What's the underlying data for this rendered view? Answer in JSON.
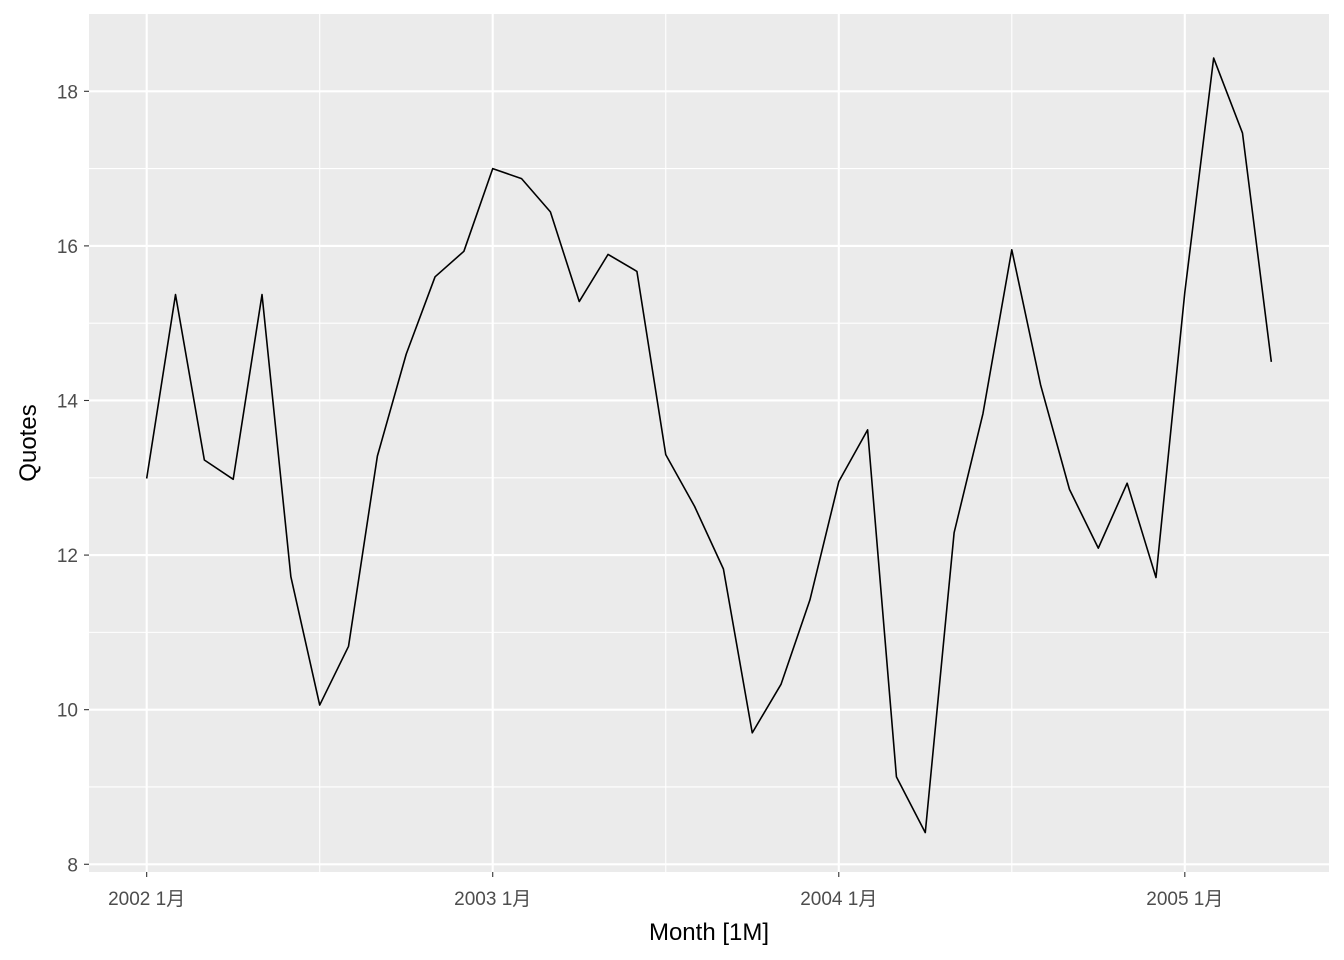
{
  "chart_data": {
    "type": "line",
    "xlabel": "Month [1M]",
    "ylabel": "Quotes",
    "x_tick_labels": [
      "2002 1月",
      "2003 1月",
      "2004 1月",
      "2005 1月"
    ],
    "y_tick_labels": [
      "8",
      "10",
      "12",
      "14",
      "16",
      "18"
    ],
    "x_ticks": [
      "2002-01",
      "2003-01",
      "2004-01",
      "2005-01"
    ],
    "y_ticks": [
      8,
      10,
      12,
      14,
      16,
      18
    ],
    "xlim": [
      "2001-11",
      "2005-06"
    ],
    "ylim": [
      7.9,
      19.0
    ],
    "grid": true,
    "legend": "none",
    "colors": {
      "panel": "#ebebeb",
      "grid": "#ffffff",
      "line": "#000000",
      "tick": "#333333"
    },
    "series": [
      {
        "x": [
          "2002-01",
          "2002-02",
          "2002-03",
          "2002-04",
          "2002-05",
          "2002-06",
          "2002-07",
          "2002-08",
          "2002-09",
          "2002-10",
          "2002-11",
          "2002-12",
          "2003-01",
          "2003-02",
          "2003-03",
          "2003-04",
          "2003-05",
          "2003-06",
          "2003-07",
          "2003-08",
          "2003-09",
          "2003-10",
          "2003-11",
          "2003-12",
          "2004-01",
          "2004-02",
          "2004-03",
          "2004-04",
          "2004-05",
          "2004-06",
          "2004-07",
          "2004-08",
          "2004-09",
          "2004-10",
          "2004-11",
          "2004-12",
          "2005-01",
          "2005-02",
          "2005-03",
          "2005-04"
        ],
        "values": [
          12.99,
          15.37,
          13.23,
          12.98,
          15.37,
          11.72,
          10.06,
          10.82,
          13.28,
          14.6,
          15.6,
          15.93,
          17.0,
          16.87,
          16.44,
          15.28,
          15.89,
          15.67,
          13.3,
          12.63,
          11.82,
          9.7,
          10.33,
          11.42,
          12.95,
          13.62,
          9.13,
          8.41,
          12.29,
          13.83,
          15.95,
          14.2,
          12.85,
          12.09,
          12.93,
          11.71,
          15.4,
          18.43,
          17.46,
          14.5
        ]
      }
    ]
  }
}
